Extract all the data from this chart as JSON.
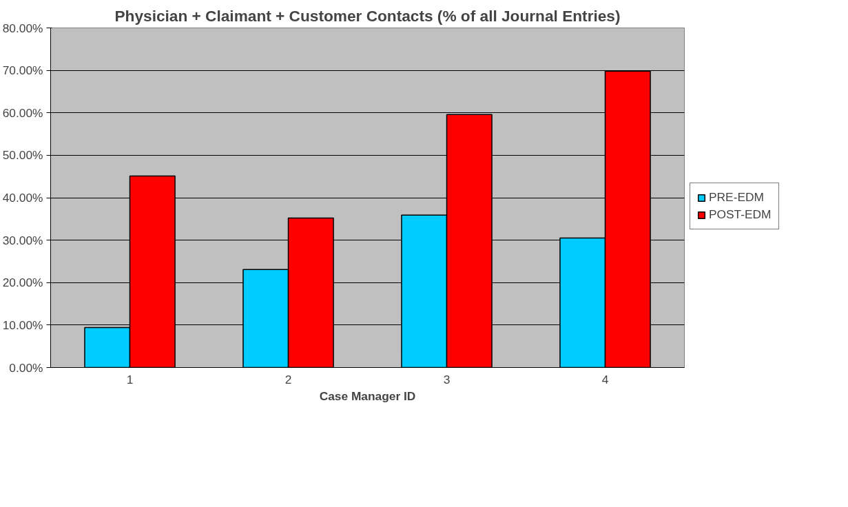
{
  "chart_data": {
    "type": "bar",
    "title": "Physician + Claimant + Customer Contacts (% of all Journal Entries)",
    "xlabel": "Case Manager ID",
    "categories": [
      "1",
      "2",
      "3",
      "4"
    ],
    "series": [
      {
        "name": "PRE-EDM",
        "color": "#00ccff",
        "values": [
          9.4,
          23.1,
          35.9,
          30.5
        ]
      },
      {
        "name": "POST-EDM",
        "color": "#ff0000",
        "values": [
          45.1,
          35.2,
          59.6,
          69.8
        ]
      }
    ],
    "ylim": [
      0,
      80
    ],
    "yticks": [
      {
        "value": 0,
        "label": "0.00%"
      },
      {
        "value": 10,
        "label": "10.00%"
      },
      {
        "value": 20,
        "label": "20.00%"
      },
      {
        "value": 30,
        "label": "30.00%"
      },
      {
        "value": 40,
        "label": "40.00%"
      },
      {
        "value": 50,
        "label": "50.00%"
      },
      {
        "value": 60,
        "label": "60.00%"
      },
      {
        "value": 70,
        "label": "70.00%"
      },
      {
        "value": 80,
        "label": "80.00%"
      }
    ],
    "grid": "y",
    "legend": "right"
  }
}
